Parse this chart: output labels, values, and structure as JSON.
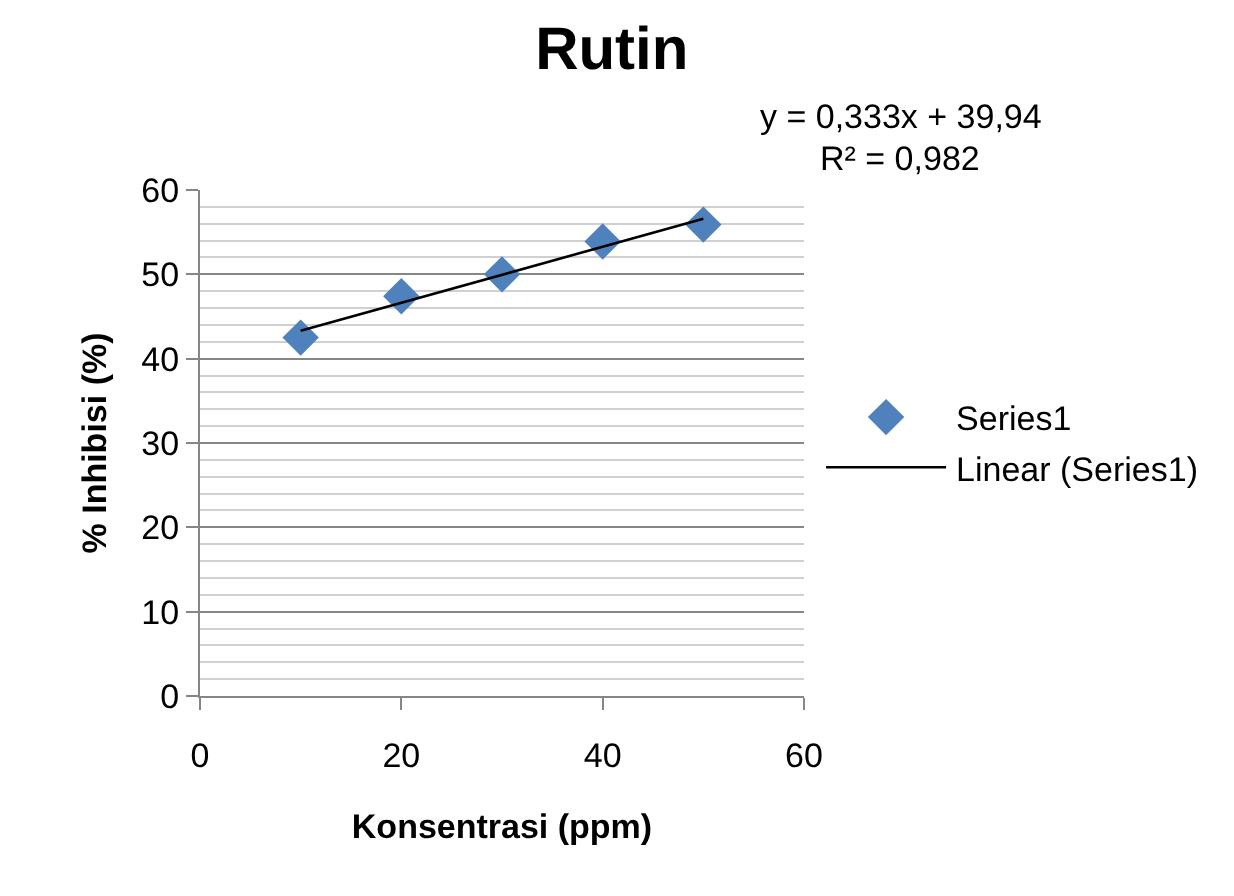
{
  "chart_data": {
    "type": "scatter",
    "title": "Rutin",
    "xlabel": "Konsentrasi (ppm)",
    "ylabel": "% Inhibisi (%)",
    "annotations": [
      "y = 0,333x + 39,94",
      "R² = 0,982"
    ],
    "x": [
      10,
      20,
      30,
      40,
      50
    ],
    "series": [
      {
        "name": "Series1",
        "color": "#4f81bd",
        "values": [
          42.5,
          47.4,
          50.0,
          53.9,
          55.9
        ],
        "marker": "diamond"
      },
      {
        "name": "Linear (Series1)",
        "type": "line",
        "color": "#000000",
        "x": [
          10,
          50
        ],
        "values": [
          43.3,
          56.6
        ],
        "marker": "none"
      }
    ],
    "xlim": [
      0,
      60
    ],
    "xticks": [
      0,
      20,
      40,
      60
    ],
    "ylim": [
      0,
      60
    ],
    "yticks": [
      0,
      10,
      20,
      30,
      40,
      50,
      60
    ],
    "grid": "y",
    "legend": "right"
  }
}
